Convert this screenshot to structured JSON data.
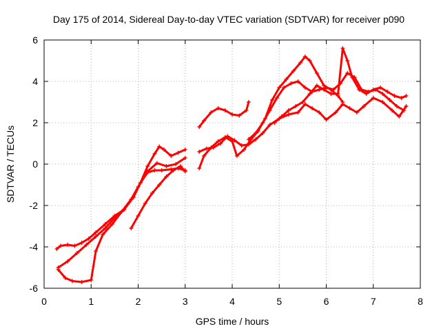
{
  "chart_data": {
    "type": "scatter",
    "title": "Day 175 of 2014, Sidereal Day-to-day VTEC variation (SDTVAR) for receiver p090",
    "xlabel": "GPS time / hours",
    "ylabel": "SDTVAR / TECUs",
    "xlim": [
      0,
      8
    ],
    "ylim": [
      -6,
      6
    ],
    "xticks": [
      "0",
      "1",
      "2",
      "3",
      "4",
      "5",
      "6",
      "7",
      "8"
    ],
    "yticks": [
      "-6",
      "-4",
      "-2",
      "0",
      "2",
      "4",
      "6"
    ],
    "grid": true,
    "legend": "none",
    "marker_color": "#ff0000",
    "marker": "plus",
    "series": [
      {
        "x": [
          0.27,
          0.35,
          0.5,
          0.65,
          0.8,
          0.95,
          1.1,
          1.3,
          1.5,
          1.7,
          1.9,
          2.05,
          2.2,
          2.35,
          2.45,
          2.55,
          2.7,
          2.85,
          3.0
        ],
        "y": [
          -4.1,
          -3.95,
          -3.9,
          -3.95,
          -3.8,
          -3.6,
          -3.3,
          -2.9,
          -2.5,
          -2.2,
          -1.6,
          -0.9,
          -0.1,
          0.5,
          0.85,
          0.7,
          0.4,
          0.55,
          0.7
        ]
      },
      {
        "x": [
          0.3,
          0.5,
          0.7,
          0.9,
          1.1,
          1.3,
          1.5,
          1.7,
          1.9,
          2.05,
          2.2,
          2.35,
          2.5,
          2.7,
          2.85,
          3.0
        ],
        "y": [
          -5.0,
          -4.7,
          -4.3,
          -3.9,
          -3.5,
          -3.1,
          -2.6,
          -2.2,
          -1.6,
          -0.9,
          -0.4,
          -0.3,
          -0.3,
          -0.25,
          -0.2,
          -0.3
        ]
      },
      {
        "x": [
          0.3,
          0.45,
          0.6,
          0.8,
          1.0,
          1.1,
          1.25,
          1.45,
          1.65,
          1.85,
          2.0,
          2.2,
          2.4,
          2.6,
          2.8,
          3.0
        ],
        "y": [
          -5.1,
          -5.5,
          -5.65,
          -5.7,
          -5.6,
          -4.2,
          -3.4,
          -2.9,
          -2.3,
          -1.7,
          -1.1,
          -0.35,
          0.05,
          -0.1,
          0.0,
          0.3
        ]
      },
      {
        "x": [
          1.85,
          2.0,
          2.15,
          2.3,
          2.45,
          2.6,
          2.75,
          2.9,
          3.0
        ],
        "y": [
          -3.1,
          -2.5,
          -1.9,
          -1.4,
          -1.0,
          -0.6,
          -0.3,
          -0.1,
          -0.35
        ]
      },
      {
        "x": [
          3.3,
          3.4,
          3.55,
          3.7,
          3.85,
          4.0,
          4.15,
          4.3,
          4.35
        ],
        "y": [
          1.8,
          2.1,
          2.5,
          2.7,
          2.6,
          2.4,
          2.35,
          2.6,
          3.0
        ]
      },
      {
        "x": [
          3.3,
          3.45,
          3.6,
          3.75,
          3.9,
          4.05,
          4.2,
          4.35,
          4.5,
          4.65,
          4.8,
          5.0,
          5.2,
          5.4,
          5.55,
          5.7,
          5.85,
          6.0,
          6.2,
          6.35,
          6.5,
          6.65,
          6.8,
          7.0,
          7.2,
          7.4,
          7.55,
          7.7
        ],
        "y": [
          0.6,
          0.75,
          0.8,
          1.0,
          1.35,
          1.15,
          0.9,
          0.95,
          1.2,
          1.5,
          1.9,
          2.2,
          2.4,
          2.5,
          2.9,
          2.7,
          2.5,
          2.15,
          2.5,
          2.9,
          2.7,
          2.5,
          2.8,
          3.2,
          3.0,
          2.6,
          2.3,
          2.8
        ]
      },
      {
        "x": [
          3.3,
          3.4,
          3.55,
          3.7,
          3.85,
          4.0,
          4.1,
          4.25,
          4.4,
          4.55,
          4.7,
          4.85,
          5.0,
          5.15,
          5.3,
          5.45,
          5.55,
          5.65,
          5.8,
          5.95,
          6.1,
          6.25,
          6.35
        ],
        "y": [
          -0.2,
          0.4,
          0.8,
          1.1,
          1.3,
          1.1,
          0.4,
          0.7,
          1.2,
          1.6,
          2.2,
          3.1,
          3.7,
          4.1,
          4.5,
          4.9,
          5.2,
          5.0,
          4.4,
          3.8,
          3.6,
          3.3,
          3.0
        ]
      },
      {
        "x": [
          4.35,
          4.5,
          4.65,
          4.8,
          4.95,
          5.1,
          5.25,
          5.4,
          5.55,
          5.7,
          5.85,
          6.0,
          6.15,
          6.3,
          6.45,
          6.6,
          6.75,
          6.9,
          7.05,
          7.2,
          7.35,
          7.5,
          7.65
        ],
        "y": [
          1.2,
          1.5,
          2.0,
          2.6,
          3.2,
          3.7,
          3.9,
          4.0,
          3.7,
          3.5,
          3.6,
          3.7,
          3.6,
          3.9,
          4.4,
          4.2,
          3.6,
          3.5,
          3.6,
          3.4,
          3.1,
          2.8,
          2.6
        ]
      },
      {
        "x": [
          4.9,
          5.05,
          5.2,
          5.35,
          5.5,
          5.65,
          5.8,
          5.95,
          6.1,
          6.25,
          6.35,
          6.45,
          6.55,
          6.7,
          6.85,
          7.0,
          7.15,
          7.3,
          7.45,
          7.6,
          7.7
        ],
        "y": [
          2.0,
          2.3,
          2.6,
          2.8,
          3.0,
          3.4,
          3.8,
          3.6,
          3.4,
          3.4,
          5.6,
          5.0,
          4.2,
          3.6,
          3.4,
          3.6,
          3.7,
          3.5,
          3.3,
          3.2,
          3.3
        ]
      }
    ]
  }
}
